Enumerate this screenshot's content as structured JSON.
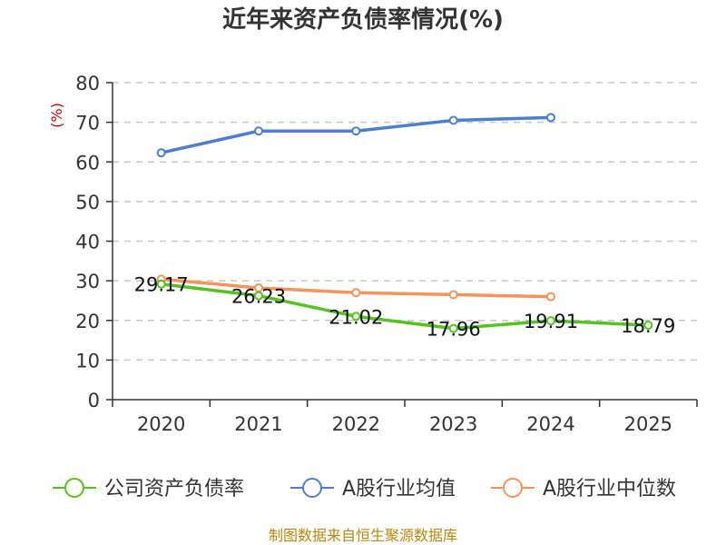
{
  "chart_data": {
    "type": "line",
    "title": "近年来资产负债率情况(%)",
    "ylabel": "(%)",
    "ylim": [
      0,
      80
    ],
    "yticks": [
      0,
      10,
      20,
      30,
      40,
      50,
      60,
      70,
      80
    ],
    "categories": [
      "2020",
      "2021",
      "2022",
      "2023",
      "2024",
      "2025"
    ],
    "grid": true,
    "legend": "bottom",
    "series": [
      {
        "name": "公司资产负债率",
        "color": "#52c41a",
        "values": [
          29.17,
          26.23,
          21.02,
          17.96,
          19.91,
          18.79
        ],
        "labels": [
          "29.17",
          "26.23",
          "21.02",
          "17.96",
          "19.91",
          "18.79"
        ]
      },
      {
        "name": "A股行业均值",
        "color": "#4a7fd4",
        "values": [
          62.3,
          67.8,
          67.8,
          70.5,
          71.2,
          null
        ]
      },
      {
        "name": "A股行业中位数",
        "color": "#f5935a",
        "values": [
          30.4,
          28.2,
          27.0,
          26.5,
          26.0,
          null
        ]
      }
    ],
    "source": "制图数据来自恒生聚源数据库"
  }
}
